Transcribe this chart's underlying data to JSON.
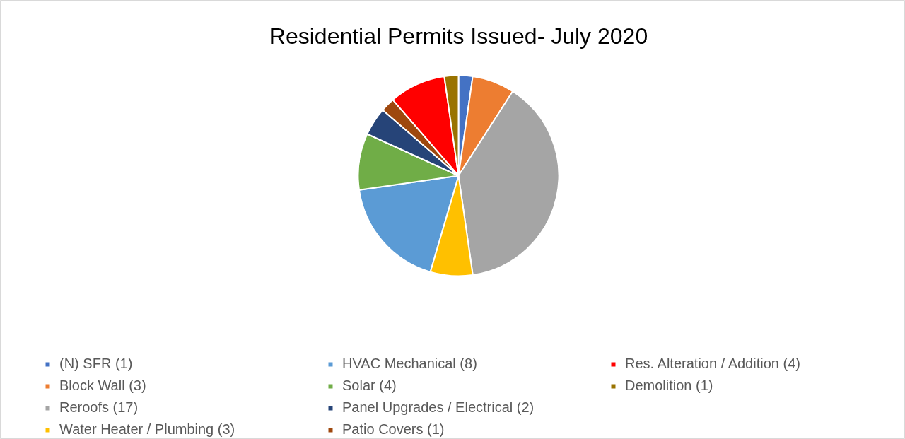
{
  "chart_data": {
    "type": "pie",
    "title": "Residential Permits Issued- July 2020",
    "categories": [
      "(N) SFR (1)",
      "Block Wall (3)",
      "Reroofs (17)",
      "Water Heater / Plumbing (3)",
      "HVAC Mechanical (8)",
      "Solar (4)",
      "Panel Upgrades / Electrical (2)",
      "Patio Covers (1)",
      "Res. Alteration / Addition (4)",
      "Demolition (1)"
    ],
    "values": [
      1,
      3,
      17,
      3,
      8,
      4,
      2,
      1,
      4,
      1
    ],
    "colors": [
      "#4472c4",
      "#ed7d31",
      "#a5a5a5",
      "#ffc000",
      "#5b9bd5",
      "#70ad47",
      "#264478",
      "#9e480e",
      "#ff0000",
      "#997300"
    ],
    "legend": "bottom"
  }
}
